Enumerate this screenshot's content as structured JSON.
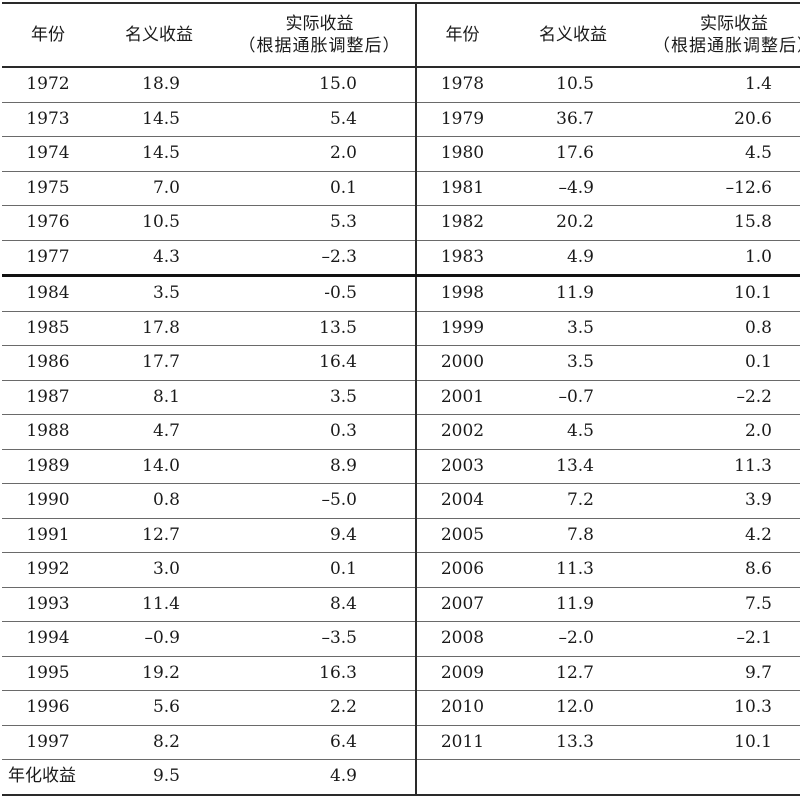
{
  "headers": {
    "year": "年份",
    "nominal": "名义收益",
    "real_line1": "实际收益",
    "real_line2": "（根据通胀调整后）"
  },
  "rows_top": [
    {
      "l_year": "1972",
      "l_nom": "18.9",
      "l_real": "15.0",
      "r_year": "1978",
      "r_nom": "10.5",
      "r_real": "1.4"
    },
    {
      "l_year": "1973",
      "l_nom": "14.5",
      "l_real": "5.4",
      "r_year": "1979",
      "r_nom": "36.7",
      "r_real": "20.6"
    },
    {
      "l_year": "1974",
      "l_nom": "14.5",
      "l_real": "2.0",
      "r_year": "1980",
      "r_nom": "17.6",
      "r_real": "4.5"
    },
    {
      "l_year": "1975",
      "l_nom": "7.0",
      "l_real": "0.1",
      "r_year": "1981",
      "r_nom": "–4.9",
      "r_real": "–12.6"
    },
    {
      "l_year": "1976",
      "l_nom": "10.5",
      "l_real": "5.3",
      "r_year": "1982",
      "r_nom": "20.2",
      "r_real": "15.8"
    },
    {
      "l_year": "1977",
      "l_nom": "4.3",
      "l_real": "–2.3",
      "r_year": "1983",
      "r_nom": "4.9",
      "r_real": "1.0"
    }
  ],
  "rows_bottom": [
    {
      "l_year": "1984",
      "l_nom": "3.5",
      "l_real": "-0.5",
      "r_year": "1998",
      "r_nom": "11.9",
      "r_real": "10.1"
    },
    {
      "l_year": "1985",
      "l_nom": "17.8",
      "l_real": "13.5",
      "r_year": "1999",
      "r_nom": "3.5",
      "r_real": "0.8"
    },
    {
      "l_year": "1986",
      "l_nom": "17.7",
      "l_real": "16.4",
      "r_year": "2000",
      "r_nom": "3.5",
      "r_real": "0.1"
    },
    {
      "l_year": "1987",
      "l_nom": "8.1",
      "l_real": "3.5",
      "r_year": "2001",
      "r_nom": "–0.7",
      "r_real": "–2.2"
    },
    {
      "l_year": "1988",
      "l_nom": "4.7",
      "l_real": "0.3",
      "r_year": "2002",
      "r_nom": "4.5",
      "r_real": "2.0"
    },
    {
      "l_year": "1989",
      "l_nom": "14.0",
      "l_real": "8.9",
      "r_year": "2003",
      "r_nom": "13.4",
      "r_real": "11.3"
    },
    {
      "l_year": "1990",
      "l_nom": "0.8",
      "l_real": "–5.0",
      "r_year": "2004",
      "r_nom": "7.2",
      "r_real": "3.9"
    },
    {
      "l_year": "1991",
      "l_nom": "12.7",
      "l_real": "9.4",
      "r_year": "2005",
      "r_nom": "7.8",
      "r_real": "4.2"
    },
    {
      "l_year": "1992",
      "l_nom": "3.0",
      "l_real": "0.1",
      "r_year": "2006",
      "r_nom": "11.3",
      "r_real": "8.6"
    },
    {
      "l_year": "1993",
      "l_nom": "11.4",
      "l_real": "8.4",
      "r_year": "2007",
      "r_nom": "11.9",
      "r_real": "7.5"
    },
    {
      "l_year": "1994",
      "l_nom": "–0.9",
      "l_real": "–3.5",
      "r_year": "2008",
      "r_nom": "–2.0",
      "r_real": "–2.1"
    },
    {
      "l_year": "1995",
      "l_nom": "19.2",
      "l_real": "16.3",
      "r_year": "2009",
      "r_nom": "12.7",
      "r_real": "9.7"
    },
    {
      "l_year": "1996",
      "l_nom": "5.6",
      "l_real": "2.2",
      "r_year": "2010",
      "r_nom": "12.0",
      "r_real": "10.3"
    },
    {
      "l_year": "1997",
      "l_nom": "8.2",
      "l_real": "6.4",
      "r_year": "2011",
      "r_nom": "13.3",
      "r_real": "10.1"
    }
  ],
  "summary": {
    "label": "年化收益",
    "nominal": "9.5",
    "real": "4.9"
  }
}
